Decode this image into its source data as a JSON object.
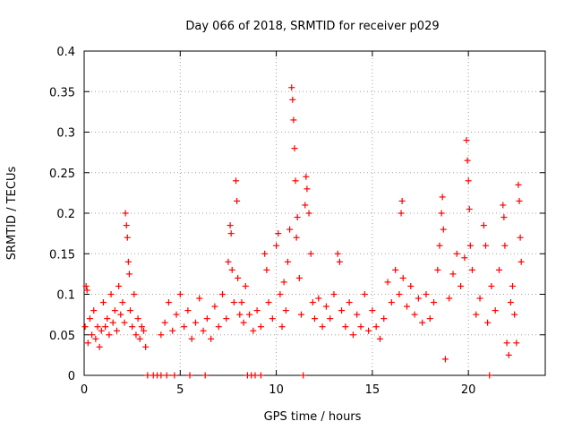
{
  "chart_data": {
    "type": "scatter",
    "title": "Day 066 of 2018, SRMTID for receiver p029",
    "xlabel": "GPS time / hours",
    "ylabel": "SRMTID / TECUs",
    "xlim": [
      0,
      24
    ],
    "ylim": [
      0,
      0.4
    ],
    "xticks": [
      0,
      5,
      10,
      15,
      20
    ],
    "xtick_labels": [
      "0",
      "5",
      "10",
      "15",
      "20"
    ],
    "yticks": [
      0,
      0.05,
      0.1,
      0.15,
      0.2,
      0.25,
      0.3,
      0.35,
      0.4
    ],
    "ytick_labels": [
      "0",
      "0.05",
      "0.1",
      "0.15",
      "0.2",
      "0.25",
      "0.3",
      "0.35",
      "0.4"
    ],
    "grid": true,
    "marker": "+",
    "color": "#ff0000",
    "series": [
      {
        "name": "SRMTID",
        "points": [
          [
            0.05,
            0.06
          ],
          [
            0.1,
            0.11
          ],
          [
            0.15,
            0.105
          ],
          [
            0.2,
            0.04
          ],
          [
            0.3,
            0.07
          ],
          [
            0.4,
            0.05
          ],
          [
            0.5,
            0.08
          ],
          [
            0.6,
            0.045
          ],
          [
            0.7,
            0.06
          ],
          [
            0.8,
            0.035
          ],
          [
            0.9,
            0.055
          ],
          [
            1.0,
            0.09
          ],
          [
            1.1,
            0.06
          ],
          [
            1.2,
            0.07
          ],
          [
            1.3,
            0.05
          ],
          [
            1.4,
            0.1
          ],
          [
            1.5,
            0.065
          ],
          [
            1.6,
            0.08
          ],
          [
            1.7,
            0.055
          ],
          [
            1.8,
            0.11
          ],
          [
            1.9,
            0.075
          ],
          [
            2.0,
            0.09
          ],
          [
            2.1,
            0.065
          ],
          [
            2.15,
            0.2
          ],
          [
            2.2,
            0.185
          ],
          [
            2.25,
            0.17
          ],
          [
            2.3,
            0.14
          ],
          [
            2.35,
            0.125
          ],
          [
            2.4,
            0.08
          ],
          [
            2.5,
            0.06
          ],
          [
            2.6,
            0.1
          ],
          [
            2.7,
            0.05
          ],
          [
            2.8,
            0.07
          ],
          [
            2.9,
            0.045
          ],
          [
            3.0,
            0.06
          ],
          [
            3.1,
            0.055
          ],
          [
            3.2,
            0.035
          ],
          [
            3.3,
            0.0
          ],
          [
            3.6,
            0.0
          ],
          [
            3.8,
            0.0
          ],
          [
            4.0,
            0.0
          ],
          [
            4.3,
            0.0
          ],
          [
            4.7,
            0.0
          ],
          [
            4.0,
            0.05
          ],
          [
            4.2,
            0.065
          ],
          [
            4.4,
            0.09
          ],
          [
            4.6,
            0.055
          ],
          [
            4.8,
            0.075
          ],
          [
            5.0,
            0.1
          ],
          [
            5.2,
            0.06
          ],
          [
            5.4,
            0.08
          ],
          [
            5.6,
            0.045
          ],
          [
            5.8,
            0.065
          ],
          [
            5.5,
            0.0
          ],
          [
            6.3,
            0.0
          ],
          [
            6.0,
            0.095
          ],
          [
            6.2,
            0.055
          ],
          [
            6.4,
            0.07
          ],
          [
            6.6,
            0.045
          ],
          [
            6.8,
            0.085
          ],
          [
            7.0,
            0.06
          ],
          [
            7.2,
            0.1
          ],
          [
            7.4,
            0.07
          ],
          [
            7.5,
            0.14
          ],
          [
            7.6,
            0.185
          ],
          [
            7.65,
            0.175
          ],
          [
            7.7,
            0.13
          ],
          [
            7.8,
            0.09
          ],
          [
            7.9,
            0.24
          ],
          [
            7.95,
            0.215
          ],
          [
            8.0,
            0.12
          ],
          [
            8.1,
            0.075
          ],
          [
            8.2,
            0.09
          ],
          [
            8.3,
            0.065
          ],
          [
            8.4,
            0.11
          ],
          [
            8.5,
            0.0
          ],
          [
            8.7,
            0.0
          ],
          [
            8.9,
            0.0
          ],
          [
            9.2,
            0.0
          ],
          [
            8.6,
            0.075
          ],
          [
            8.8,
            0.055
          ],
          [
            9.0,
            0.08
          ],
          [
            9.2,
            0.06
          ],
          [
            9.4,
            0.15
          ],
          [
            9.5,
            0.13
          ],
          [
            9.6,
            0.09
          ],
          [
            9.8,
            0.07
          ],
          [
            10.0,
            0.16
          ],
          [
            10.1,
            0.175
          ],
          [
            10.2,
            0.1
          ],
          [
            10.3,
            0.06
          ],
          [
            10.4,
            0.115
          ],
          [
            10.5,
            0.08
          ],
          [
            10.6,
            0.14
          ],
          [
            10.7,
            0.18
          ],
          [
            10.8,
            0.355
          ],
          [
            10.85,
            0.34
          ],
          [
            10.9,
            0.315
          ],
          [
            10.95,
            0.28
          ],
          [
            11.0,
            0.24
          ],
          [
            11.05,
            0.17
          ],
          [
            11.1,
            0.195
          ],
          [
            11.2,
            0.12
          ],
          [
            11.3,
            0.075
          ],
          [
            11.4,
            0.0
          ],
          [
            11.5,
            0.21
          ],
          [
            11.55,
            0.245
          ],
          [
            11.6,
            0.23
          ],
          [
            11.7,
            0.2
          ],
          [
            11.8,
            0.15
          ],
          [
            11.9,
            0.09
          ],
          [
            12.0,
            0.07
          ],
          [
            12.2,
            0.095
          ],
          [
            12.4,
            0.06
          ],
          [
            12.6,
            0.085
          ],
          [
            12.8,
            0.07
          ],
          [
            13.0,
            0.1
          ],
          [
            13.2,
            0.15
          ],
          [
            13.3,
            0.14
          ],
          [
            13.4,
            0.08
          ],
          [
            13.6,
            0.06
          ],
          [
            13.8,
            0.09
          ],
          [
            14.0,
            0.05
          ],
          [
            14.2,
            0.075
          ],
          [
            14.4,
            0.06
          ],
          [
            14.6,
            0.1
          ],
          [
            14.8,
            0.055
          ],
          [
            15.0,
            0.08
          ],
          [
            15.2,
            0.06
          ],
          [
            15.4,
            0.045
          ],
          [
            15.6,
            0.07
          ],
          [
            15.8,
            0.115
          ],
          [
            16.0,
            0.09
          ],
          [
            16.2,
            0.13
          ],
          [
            16.4,
            0.1
          ],
          [
            16.5,
            0.2
          ],
          [
            16.55,
            0.215
          ],
          [
            16.6,
            0.12
          ],
          [
            16.8,
            0.085
          ],
          [
            17.0,
            0.11
          ],
          [
            17.2,
            0.075
          ],
          [
            17.4,
            0.095
          ],
          [
            17.6,
            0.065
          ],
          [
            17.8,
            0.1
          ],
          [
            18.0,
            0.07
          ],
          [
            18.2,
            0.09
          ],
          [
            18.4,
            0.13
          ],
          [
            18.5,
            0.16
          ],
          [
            18.6,
            0.2
          ],
          [
            18.65,
            0.22
          ],
          [
            18.7,
            0.18
          ],
          [
            18.8,
            0.02
          ],
          [
            19.0,
            0.095
          ],
          [
            19.2,
            0.125
          ],
          [
            19.4,
            0.15
          ],
          [
            19.6,
            0.11
          ],
          [
            19.8,
            0.145
          ],
          [
            19.9,
            0.29
          ],
          [
            19.95,
            0.265
          ],
          [
            20.0,
            0.24
          ],
          [
            20.05,
            0.205
          ],
          [
            20.1,
            0.16
          ],
          [
            20.2,
            0.13
          ],
          [
            20.4,
            0.075
          ],
          [
            20.6,
            0.095
          ],
          [
            20.8,
            0.185
          ],
          [
            20.9,
            0.16
          ],
          [
            21.0,
            0.065
          ],
          [
            21.1,
            0.0
          ],
          [
            21.2,
            0.11
          ],
          [
            21.4,
            0.08
          ],
          [
            21.6,
            0.13
          ],
          [
            21.8,
            0.21
          ],
          [
            21.85,
            0.195
          ],
          [
            21.9,
            0.16
          ],
          [
            22.0,
            0.04
          ],
          [
            22.1,
            0.025
          ],
          [
            22.2,
            0.09
          ],
          [
            22.3,
            0.11
          ],
          [
            22.4,
            0.075
          ],
          [
            22.5,
            0.04
          ],
          [
            22.6,
            0.235
          ],
          [
            22.65,
            0.215
          ],
          [
            22.7,
            0.17
          ],
          [
            22.75,
            0.14
          ]
        ]
      }
    ]
  }
}
